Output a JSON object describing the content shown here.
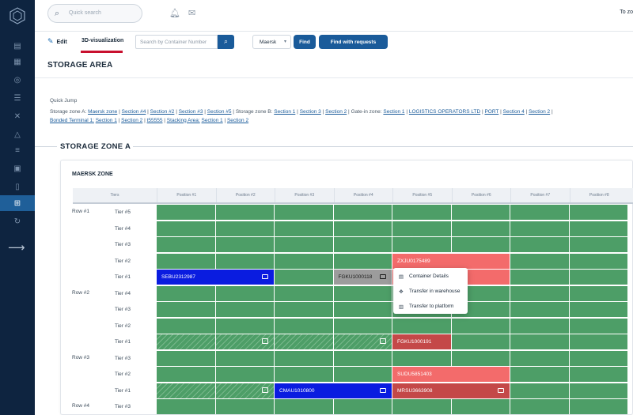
{
  "topbar": {
    "search_placeholder": "Quick search",
    "right_text": "To zo"
  },
  "toolbar": {
    "edit_label": "Edit",
    "viz_label": "3D-visualization",
    "container_placeholder": "Search by Container Number",
    "carrier_value": "Maersk",
    "find_label": "Find",
    "find_requests_label": "Find with requests"
  },
  "page": {
    "title": "STORAGE AREA",
    "quick_jump_label": "Quick Jump",
    "zone_title": "STORAGE ZONE A",
    "card_title": "MAERSK ZONE"
  },
  "quick_jump": {
    "line1": [
      {
        "t": "Storage zone A:",
        "link": false
      },
      {
        "t": "Maersk zone",
        "link": true
      },
      {
        "t": "|",
        "link": false
      },
      {
        "t": "Section #4",
        "link": true
      },
      {
        "t": "|",
        "link": false
      },
      {
        "t": "Section #2",
        "link": true
      },
      {
        "t": "|",
        "link": false
      },
      {
        "t": "Section #3",
        "link": true
      },
      {
        "t": "|",
        "link": false
      },
      {
        "t": "Section #5",
        "link": true
      },
      {
        "t": "|",
        "link": false
      },
      {
        "t": "Storage zone B:",
        "link": false
      },
      {
        "t": "Section 1",
        "link": true
      },
      {
        "t": "|",
        "link": false
      },
      {
        "t": "Section 3",
        "link": true
      },
      {
        "t": "|",
        "link": false
      },
      {
        "t": "Section 2",
        "link": true
      },
      {
        "t": "|",
        "link": false
      },
      {
        "t": "Gate-in zone:",
        "link": false
      },
      {
        "t": "Section 1",
        "link": true
      },
      {
        "t": "|",
        "link": false
      },
      {
        "t": "LOGISTICS OPERATORS LTD",
        "link": true
      },
      {
        "t": "|",
        "link": false
      },
      {
        "t": "PORT",
        "link": true
      },
      {
        "t": "|",
        "link": false
      },
      {
        "t": "Section 4",
        "link": true
      },
      {
        "t": "|",
        "link": false
      },
      {
        "t": "Section 2",
        "link": true
      },
      {
        "t": "|",
        "link": false
      }
    ],
    "line2": [
      {
        "t": "Bonded Terminal 1:",
        "link": true
      },
      {
        "t": "Section 1",
        "link": true
      },
      {
        "t": "|",
        "link": false
      },
      {
        "t": "Section 2",
        "link": true
      },
      {
        "t": "|",
        "link": false
      },
      {
        "t": "t55555",
        "link": true
      },
      {
        "t": "|",
        "link": false
      },
      {
        "t": "Stacking Area:",
        "link": true
      },
      {
        "t": "Section 1",
        "link": true
      },
      {
        "t": "|",
        "link": false
      },
      {
        "t": "Section 2",
        "link": true
      }
    ]
  },
  "grid": {
    "tiers_header": "Tiers",
    "positions": [
      "Position #1",
      "Position #2",
      "Position #3",
      "Position #4",
      "Position #5",
      "Position #6",
      "Position #7",
      "Position #8"
    ],
    "rows": [
      {
        "label": "Row #1",
        "tiers": [
          "Tier #5",
          "Tier #4",
          "Tier #3",
          "Tier #2",
          "Tier #1"
        ]
      },
      {
        "label": "Row #2",
        "tiers": [
          "Tier #4",
          "Tier #3",
          "Tier #2",
          "Tier #1"
        ]
      },
      {
        "label": "Row #3",
        "tiers": [
          "Tier #3",
          "Tier #2",
          "Tier #1"
        ]
      },
      {
        "label": "Row #4",
        "tiers": [
          "Tier #3"
        ]
      }
    ],
    "containers": {
      "c1": "SEBU2312987",
      "c2": "FGKU1000118",
      "c3": "ZXJU0175489",
      "c4": "FGKU1000191",
      "c5": "SUDU5851403",
      "c6": "CMAU1010800",
      "c7": "MRSU3663908"
    }
  },
  "context_menu": {
    "items": [
      "Container Details",
      "Transfer in warehouse",
      "Transfer to platform"
    ]
  },
  "colors": {
    "empty": "#4d9e67",
    "blue": "#0a1ce0",
    "salmon": "#f36b6b",
    "darkred": "#c44848",
    "gray": "#9c9c9c",
    "sidebar": "#0e2440",
    "primary": "#1a5b9a"
  }
}
